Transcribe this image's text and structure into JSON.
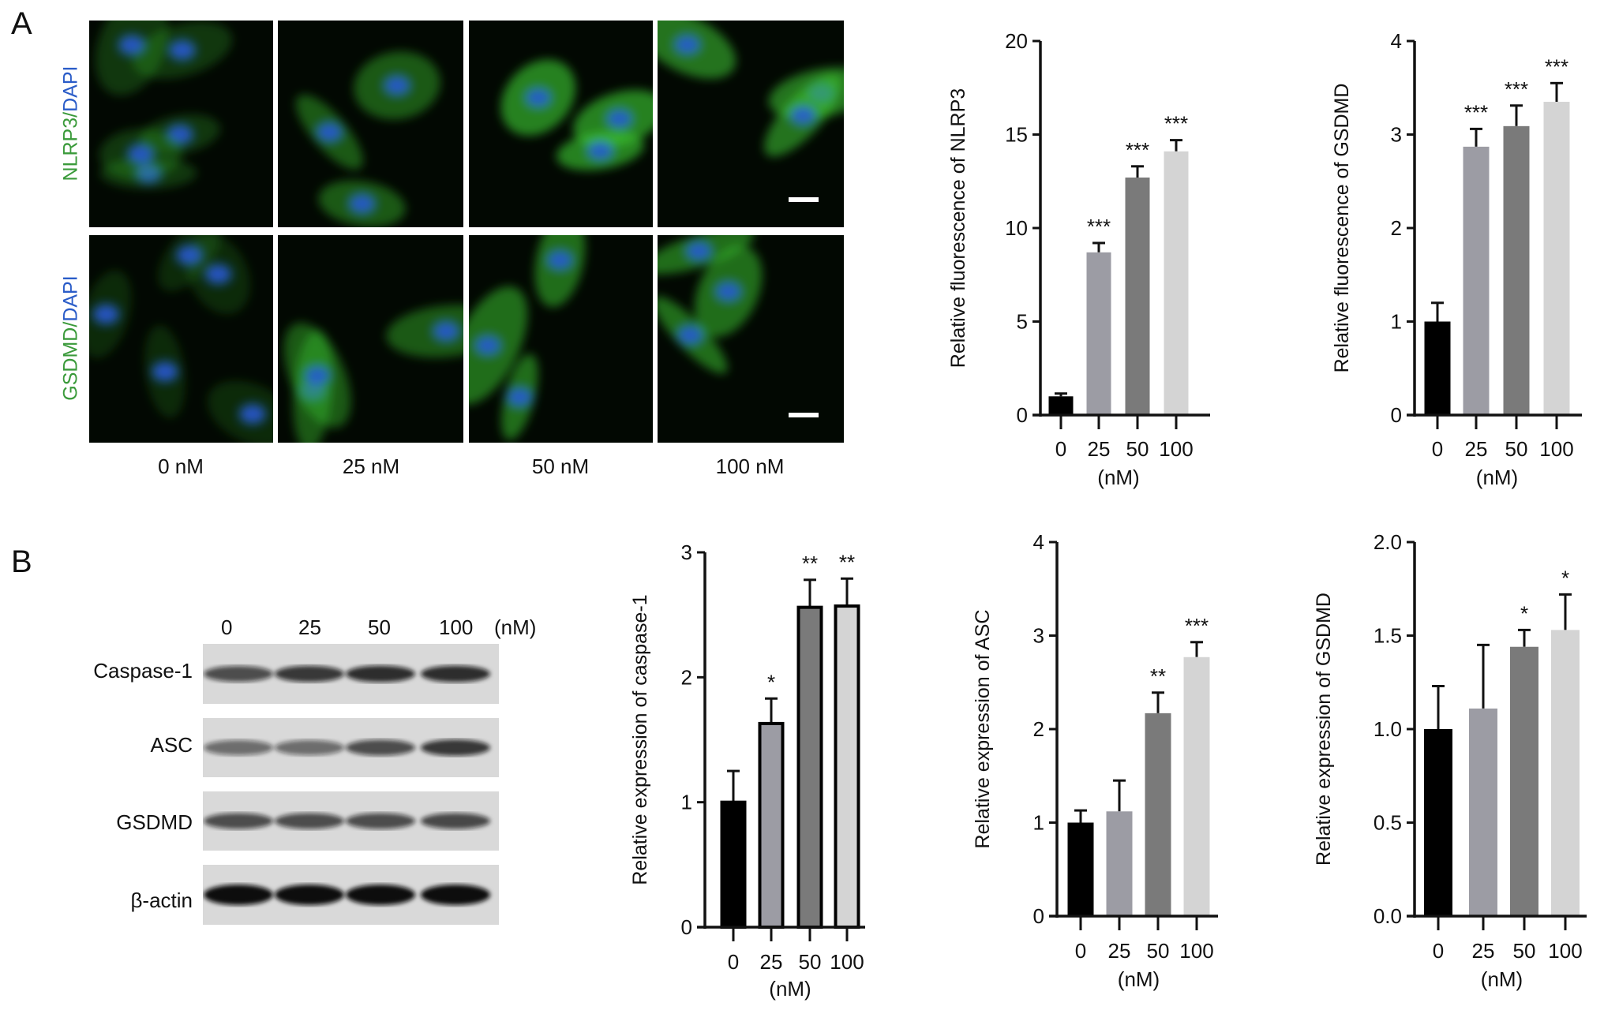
{
  "panel_A": {
    "letter": "A",
    "row_labels": [
      {
        "marker": "NLRP3",
        "sep": "/",
        "stain": "DAPI"
      },
      {
        "marker": "GSDMD",
        "sep": "/",
        "stain": "DAPI"
      }
    ],
    "column_labels": [
      "0 nM",
      "25 nM",
      "50 nM",
      "100 nM"
    ],
    "colors": {
      "marker": "#3a9a3a",
      "stain": "#2a5cc8"
    }
  },
  "panel_B": {
    "letter": "B",
    "lane_labels": [
      "0",
      "25",
      "50",
      "100",
      "(nM)"
    ],
    "blot_labels": [
      "Caspase-1",
      "ASC",
      "GSDMD",
      "β-actin"
    ]
  },
  "bar_colors": [
    "#000000",
    "#9c9ca4",
    "#7a7a7a",
    "#d4d4d4"
  ],
  "chart_data": [
    {
      "type": "bar",
      "ylabel": "Relative fluorescence of NLRP3",
      "xlabel": "(nM)",
      "categories": [
        "0",
        "25",
        "50",
        "100"
      ],
      "values": [
        1.0,
        8.7,
        12.7,
        14.1
      ],
      "errors": [
        0.15,
        0.5,
        0.6,
        0.6
      ],
      "significance": [
        "",
        "***",
        "***",
        "***"
      ],
      "ylim": [
        0,
        20
      ],
      "yticks": [
        "0",
        "5",
        "10",
        "15",
        "20"
      ]
    },
    {
      "type": "bar",
      "ylabel": "Relative fluorescence of GSDMD",
      "xlabel": "(nM)",
      "categories": [
        "0",
        "25",
        "50",
        "100"
      ],
      "values": [
        1.0,
        2.87,
        3.09,
        3.35
      ],
      "errors": [
        0.2,
        0.19,
        0.22,
        0.2
      ],
      "significance": [
        "",
        "***",
        "***",
        "***"
      ],
      "ylim": [
        0,
        4
      ],
      "yticks": [
        "0",
        "1",
        "2",
        "3",
        "4"
      ]
    },
    {
      "type": "bar",
      "ylabel": "Relative expression of caspase-1",
      "xlabel": "(nM)",
      "categories": [
        "0",
        "25",
        "50",
        "100"
      ],
      "values": [
        1.0,
        1.63,
        2.56,
        2.57
      ],
      "errors": [
        0.25,
        0.2,
        0.22,
        0.22
      ],
      "significance": [
        "",
        "*",
        "**",
        "**"
      ],
      "ylim": [
        0,
        3
      ],
      "yticks": [
        "0",
        "1",
        "2",
        "3"
      ]
    },
    {
      "type": "bar",
      "ylabel": "Relative expression of ASC",
      "xlabel": "(nM)",
      "categories": [
        "0",
        "25",
        "50",
        "100"
      ],
      "values": [
        1.0,
        1.12,
        2.17,
        2.77
      ],
      "errors": [
        0.13,
        0.33,
        0.22,
        0.16
      ],
      "significance": [
        "",
        "",
        "**",
        "***"
      ],
      "ylim": [
        0,
        4
      ],
      "yticks": [
        "0",
        "1",
        "2",
        "3",
        "4"
      ]
    },
    {
      "type": "bar",
      "ylabel": "Relative expression of GSDMD",
      "xlabel": "(nM)",
      "categories": [
        "0",
        "25",
        "50",
        "100"
      ],
      "values": [
        1.0,
        1.11,
        1.44,
        1.53
      ],
      "errors": [
        0.23,
        0.34,
        0.09,
        0.19
      ],
      "significance": [
        "",
        "",
        "*",
        "*"
      ],
      "ylim": [
        0,
        2
      ],
      "yticks": [
        "0.0",
        "0.5",
        "1.0",
        "1.5",
        "2.0"
      ]
    }
  ]
}
